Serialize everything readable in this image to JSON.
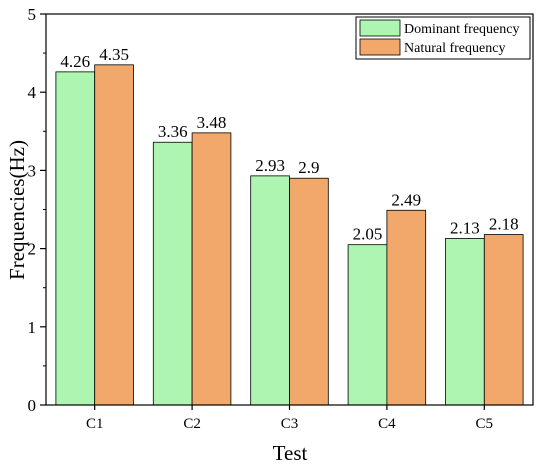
{
  "chart_data": {
    "type": "bar",
    "title": "",
    "xlabel": "Test",
    "ylabel": "Frequencies(Hz)",
    "categories": [
      "C1",
      "C2",
      "C3",
      "C4",
      "C5"
    ],
    "series": [
      {
        "name": "Dominant frequency",
        "values": [
          4.26,
          3.36,
          2.93,
          2.05,
          2.13
        ],
        "color": "#ADF5B0"
      },
      {
        "name": "Natural frequency",
        "values": [
          4.35,
          3.48,
          2.9,
          2.49,
          2.18
        ],
        "color": "#F2A86B"
      }
    ],
    "data_labels": [
      [
        "4.26",
        "3.36",
        "2.93",
        "2.05",
        "2.13"
      ],
      [
        "4.35",
        "3.48",
        "2.9",
        "2.49",
        "2.18"
      ]
    ],
    "ylim": [
      0,
      5
    ],
    "yticks": [
      "0",
      "1",
      "2",
      "3",
      "4",
      "5"
    ],
    "grid": false,
    "legend_position": "top-right"
  }
}
